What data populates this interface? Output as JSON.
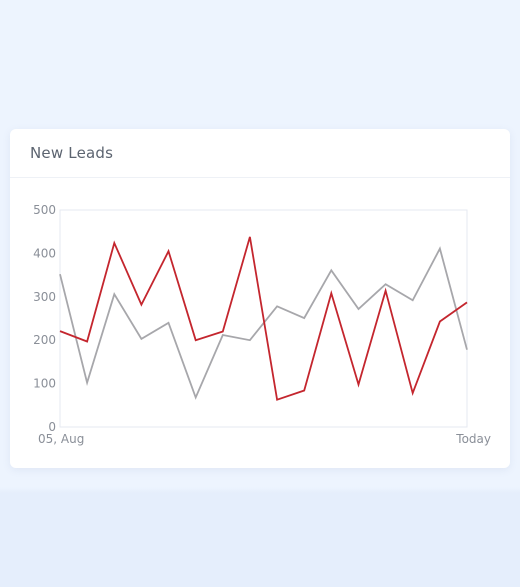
{
  "card": {
    "title": "New Leads"
  },
  "chart_data": {
    "type": "line",
    "title": "",
    "xlabel": "",
    "ylabel": "",
    "x_tick_labels": [
      "05, Aug",
      "Today"
    ],
    "y_ticks": [
      0,
      100,
      200,
      300,
      400,
      500
    ],
    "ylim": [
      0,
      500
    ],
    "grid": false,
    "series": [
      {
        "color": "#c4262e",
        "values": [
          221,
          197,
          424,
          282,
          405,
          200,
          220,
          438,
          63,
          84,
          308,
          98,
          314,
          78,
          243,
          287
        ]
      },
      {
        "color": "#a7a7ab",
        "values": [
          352,
          102,
          306,
          203,
          240,
          68,
          212,
          200,
          278,
          251,
          361,
          272,
          329,
          292,
          411,
          178
        ]
      }
    ]
  }
}
